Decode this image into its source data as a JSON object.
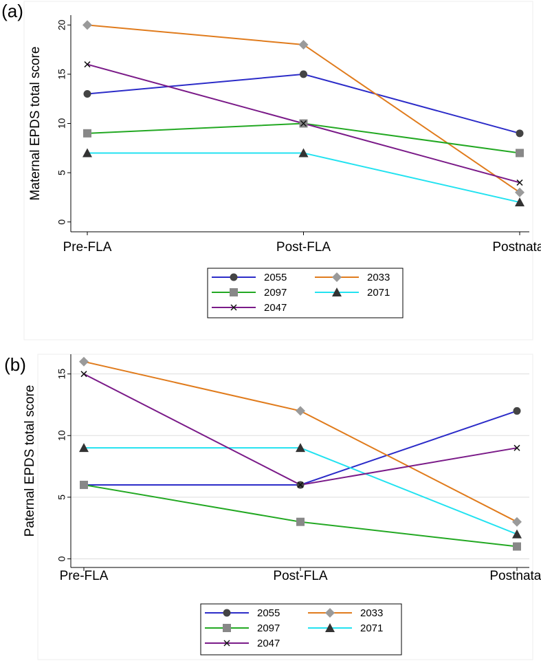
{
  "chart_data": [
    {
      "type": "line",
      "label": "(a)",
      "ylabel": "Maternal  EPDS total  score",
      "categories": [
        "Pre-FLA",
        "Post-FLA",
        "Postnatal"
      ],
      "ylim": [
        -1,
        21
      ],
      "yticks": [
        0,
        5,
        10,
        15,
        20
      ],
      "grid": false,
      "series": [
        {
          "name": "2055",
          "color": "#2b2bc8",
          "marker": "circle",
          "values": [
            13,
            15,
            9
          ]
        },
        {
          "name": "2033",
          "color": "#e07b1c",
          "marker": "diamond",
          "values": [
            20,
            18,
            3
          ]
        },
        {
          "name": "2097",
          "color": "#22a822",
          "marker": "square",
          "values": [
            9,
            10,
            7
          ]
        },
        {
          "name": "2071",
          "color": "#22e2f0",
          "marker": "triangle",
          "values": [
            7,
            7,
            2
          ]
        },
        {
          "name": "2047",
          "color": "#7a1a88",
          "marker": "x",
          "values": [
            16,
            10,
            4
          ]
        }
      ]
    },
    {
      "type": "line",
      "label": "(b)",
      "ylabel": "Paternal  EPDS total  score",
      "categories": [
        "Pre-FLA",
        "Post-FLA",
        "Postnatal"
      ],
      "ylim": [
        -0.7,
        16.6
      ],
      "yticks": [
        0,
        5,
        10,
        15
      ],
      "grid": true,
      "series": [
        {
          "name": "2055",
          "color": "#2b2bc8",
          "marker": "circle",
          "values": [
            6,
            6,
            12
          ]
        },
        {
          "name": "2033",
          "color": "#e07b1c",
          "marker": "diamond",
          "values": [
            16,
            12,
            3
          ]
        },
        {
          "name": "2097",
          "color": "#22a822",
          "marker": "square",
          "values": [
            6,
            3,
            1
          ]
        },
        {
          "name": "2071",
          "color": "#22e2f0",
          "marker": "triangle",
          "values": [
            9,
            9,
            2
          ]
        },
        {
          "name": "2047",
          "color": "#7a1a88",
          "marker": "x",
          "values": [
            15,
            6,
            9
          ]
        }
      ]
    }
  ]
}
